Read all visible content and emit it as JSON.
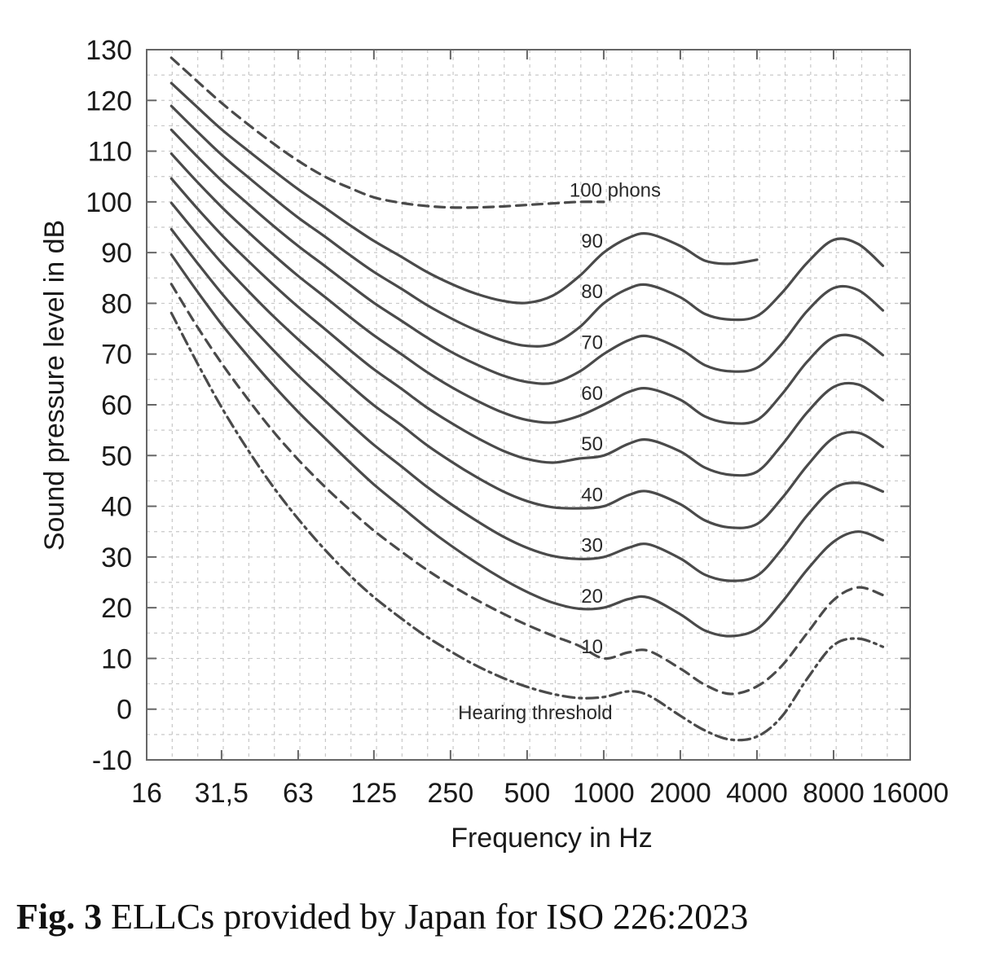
{
  "caption": {
    "label": "Fig. 3",
    "text": "ELLCs provided by Japan for ISO 226:2023"
  },
  "colors": {
    "curve": "#4a4a4a",
    "grid": "#c8c8c8",
    "frame": "#666666",
    "text": "#1a1a1a"
  },
  "chart_data": {
    "type": "line",
    "title": "",
    "xlabel": "Frequency in Hz",
    "ylabel": "Sound pressure level in dB",
    "x_scale": "log",
    "xlim": [
      16,
      16000
    ],
    "ylim": [
      -10,
      130
    ],
    "xticks": [
      16,
      31.5,
      63,
      125,
      250,
      500,
      1000,
      2000,
      4000,
      8000,
      16000
    ],
    "xtick_labels": [
      "16",
      "31,5",
      "63",
      "125",
      "250",
      "500",
      "1000",
      "2000",
      "4000",
      "8000",
      "16000"
    ],
    "yticks": [
      -10,
      0,
      10,
      20,
      30,
      40,
      50,
      60,
      70,
      80,
      90,
      100,
      110,
      120,
      130
    ],
    "ytick_labels": [
      "-10",
      "0",
      "10",
      "20",
      "30",
      "40",
      "50",
      "60",
      "70",
      "80",
      "90",
      "100",
      "110",
      "120",
      "130"
    ],
    "grid": true,
    "series": [
      {
        "name": "Hearing threshold",
        "style": "dashdot",
        "x": [
          20,
          25,
          31.5,
          40,
          50,
          63,
          80,
          100,
          125,
          160,
          200,
          250,
          315,
          400,
          500,
          630,
          800,
          1000,
          1250,
          1500,
          2000,
          2500,
          3150,
          4000,
          5000,
          6300,
          8000,
          10000,
          12500
        ],
        "y": [
          78.1,
          68.7,
          59.5,
          51.1,
          44.0,
          37.5,
          31.5,
          26.5,
          22.1,
          17.9,
          14.4,
          11.4,
          8.6,
          6.2,
          4.4,
          3.0,
          2.2,
          2.4,
          3.5,
          2.7,
          -1.3,
          -4.2,
          -6.0,
          -5.4,
          -1.5,
          6.0,
          12.6,
          13.9,
          12.3
        ]
      },
      {
        "name": "10",
        "style": "dashed",
        "x": [
          20,
          25,
          31.5,
          40,
          50,
          63,
          80,
          100,
          125,
          160,
          200,
          250,
          315,
          400,
          500,
          630,
          800,
          1000,
          1250,
          1500,
          2000,
          2500,
          3150,
          4000,
          5000,
          6300,
          8000,
          10000,
          12500
        ],
        "y": [
          83.8,
          75.8,
          68.2,
          61.1,
          54.9,
          49.2,
          43.9,
          39.4,
          35.2,
          31.1,
          27.6,
          24.5,
          21.6,
          18.9,
          16.6,
          14.5,
          12.5,
          10.0,
          11.2,
          11.5,
          8.0,
          4.8,
          3.0,
          4.5,
          8.5,
          15.0,
          21.5,
          24.0,
          22.5
        ]
      },
      {
        "name": "20",
        "style": "solid",
        "x": [
          20,
          25,
          31.5,
          40,
          50,
          63,
          80,
          100,
          125,
          160,
          200,
          250,
          315,
          400,
          500,
          630,
          800,
          1000,
          1250,
          1500,
          2000,
          2500,
          3150,
          4000,
          5000,
          6300,
          8000,
          10000,
          12500
        ],
        "y": [
          89.6,
          82.7,
          75.9,
          69.6,
          64.0,
          58.6,
          53.5,
          48.8,
          44.3,
          39.9,
          35.9,
          32.3,
          28.9,
          25.7,
          23.1,
          21.0,
          19.8,
          20.0,
          21.7,
          22.0,
          18.7,
          15.5,
          14.4,
          15.8,
          21.0,
          27.5,
          33.0,
          35.0,
          33.3
        ]
      },
      {
        "name": "30",
        "style": "solid",
        "x": [
          20,
          25,
          31.5,
          40,
          50,
          63,
          80,
          100,
          125,
          160,
          200,
          250,
          315,
          400,
          500,
          630,
          800,
          1000,
          1250,
          1500,
          2000,
          2500,
          3150,
          4000,
          5000,
          6300,
          8000,
          10000,
          12500
        ],
        "y": [
          94.6,
          88.3,
          82.0,
          76.1,
          70.9,
          65.8,
          60.9,
          56.4,
          52.1,
          47.9,
          44.0,
          40.5,
          37.2,
          34.1,
          31.8,
          30.2,
          29.6,
          30.0,
          31.8,
          32.5,
          29.7,
          26.5,
          25.3,
          26.3,
          31.5,
          38.2,
          43.5,
          44.6,
          42.9
        ]
      },
      {
        "name": "40",
        "style": "solid",
        "x": [
          20,
          25,
          31.5,
          40,
          50,
          63,
          80,
          100,
          125,
          160,
          200,
          250,
          315,
          400,
          500,
          630,
          800,
          1000,
          1250,
          1500,
          2000,
          2500,
          3150,
          4000,
          5000,
          6300,
          8000,
          10000,
          12500
        ],
        "y": [
          99.8,
          93.9,
          88.0,
          82.5,
          77.6,
          72.9,
          68.3,
          64.0,
          59.9,
          56.0,
          52.2,
          48.9,
          45.8,
          43.0,
          41.0,
          39.8,
          39.6,
          40.0,
          42.2,
          42.9,
          40.4,
          37.2,
          35.8,
          36.5,
          41.5,
          48.0,
          53.5,
          54.5,
          51.7
        ]
      },
      {
        "name": "50",
        "style": "solid",
        "x": [
          20,
          25,
          31.5,
          40,
          50,
          63,
          80,
          100,
          125,
          160,
          200,
          250,
          315,
          400,
          500,
          630,
          800,
          1000,
          1250,
          1500,
          2000,
          2500,
          3150,
          4000,
          5000,
          6300,
          8000,
          10000,
          12500
        ],
        "y": [
          104.6,
          99.0,
          93.5,
          88.4,
          83.8,
          79.3,
          75.0,
          70.9,
          67.0,
          63.2,
          59.6,
          56.5,
          53.6,
          51.0,
          49.3,
          48.6,
          49.4,
          50.0,
          52.3,
          53.1,
          50.8,
          47.6,
          46.2,
          46.8,
          52.0,
          58.5,
          63.5,
          64.0,
          60.9
        ]
      },
      {
        "name": "60",
        "style": "solid",
        "x": [
          20,
          25,
          31.5,
          40,
          50,
          63,
          80,
          100,
          125,
          160,
          200,
          250,
          315,
          400,
          500,
          630,
          800,
          1000,
          1250,
          1500,
          2000,
          2500,
          3150,
          4000,
          5000,
          6300,
          8000,
          10000,
          12500
        ],
        "y": [
          109.5,
          104.2,
          99.0,
          94.1,
          89.7,
          85.4,
          81.3,
          77.4,
          73.7,
          70.0,
          66.6,
          63.6,
          60.9,
          58.5,
          57.0,
          56.5,
          57.8,
          60.0,
          62.5,
          63.2,
          61.0,
          57.7,
          56.4,
          57.0,
          62.0,
          68.5,
          73.3,
          73.2,
          69.8
        ]
      },
      {
        "name": "70",
        "style": "solid",
        "x": [
          20,
          25,
          31.5,
          40,
          50,
          63,
          80,
          100,
          125,
          160,
          200,
          250,
          315,
          400,
          500,
          630,
          800,
          1000,
          1250,
          1500,
          2000,
          2500,
          3150,
          4000,
          5000,
          6300,
          8000,
          10000,
          12500
        ],
        "y": [
          114.2,
          109.2,
          104.2,
          99.6,
          95.4,
          91.3,
          87.4,
          83.7,
          80.1,
          76.6,
          73.4,
          70.5,
          68.0,
          65.8,
          64.5,
          64.3,
          66.5,
          70.0,
          72.7,
          73.5,
          71.0,
          67.8,
          66.6,
          67.3,
          72.0,
          78.5,
          83.0,
          82.6,
          78.6
        ]
      },
      {
        "name": "80",
        "style": "solid",
        "x": [
          20,
          25,
          31.5,
          40,
          50,
          63,
          80,
          100,
          125,
          160,
          200,
          250,
          315,
          400,
          500,
          630,
          800,
          1000,
          1250,
          1500,
          2000,
          2500,
          3150,
          4000,
          5000,
          6300,
          8000,
          10000,
          12500
        ],
        "y": [
          118.9,
          114.1,
          109.3,
          104.9,
          100.9,
          96.9,
          93.2,
          89.6,
          86.2,
          82.9,
          79.8,
          77.1,
          74.7,
          72.7,
          71.6,
          72.0,
          75.2,
          80.0,
          82.9,
          83.6,
          81.2,
          77.9,
          76.8,
          77.5,
          82.0,
          88.0,
          92.5,
          91.7,
          87.4
        ]
      },
      {
        "name": "90",
        "style": "solid",
        "x": [
          20,
          25,
          31.5,
          40,
          50,
          63,
          80,
          100,
          125,
          160,
          200,
          250,
          315,
          400,
          500,
          630,
          800,
          1000,
          1250,
          1500,
          2000,
          2500,
          3150,
          4000,
          5000,
          6300,
          8000,
          10000,
          12500
        ],
        "y": [
          123.4,
          118.9,
          114.3,
          110.1,
          106.3,
          102.5,
          98.9,
          95.5,
          92.3,
          89.2,
          86.3,
          83.9,
          81.9,
          80.5,
          80.1,
          81.5,
          85.3,
          90.0,
          92.9,
          93.7,
          91.3,
          88.4,
          87.8,
          88.6,
          null,
          null,
          null,
          null,
          null
        ]
      },
      {
        "name": "100 phons",
        "style": "dashed",
        "x": [
          20,
          25,
          31.5,
          40,
          50,
          63,
          80,
          100,
          125,
          160,
          200,
          250,
          315,
          400,
          500,
          630,
          800,
          1000
        ],
        "y": [
          128.4,
          124.0,
          119.5,
          115.3,
          111.6,
          108.1,
          105.0,
          102.8,
          100.9,
          99.8,
          99.2,
          98.9,
          98.9,
          99.1,
          99.4,
          99.7,
          100.0,
          100.0
        ]
      }
    ],
    "annotations": [
      {
        "text": "100 phons",
        "x": 1000,
        "y": 101
      },
      {
        "text": "90",
        "x": 900,
        "y": 91
      },
      {
        "text": "80",
        "x": 900,
        "y": 81
      },
      {
        "text": "70",
        "x": 900,
        "y": 71
      },
      {
        "text": "60",
        "x": 900,
        "y": 61
      },
      {
        "text": "50",
        "x": 900,
        "y": 51
      },
      {
        "text": "40",
        "x": 900,
        "y": 41
      },
      {
        "text": "30",
        "x": 900,
        "y": 31
      },
      {
        "text": "20",
        "x": 900,
        "y": 21
      },
      {
        "text": "10",
        "x": 900,
        "y": 11
      },
      {
        "text": "Hearing threshold",
        "x": 500,
        "y": -2
      }
    ]
  }
}
